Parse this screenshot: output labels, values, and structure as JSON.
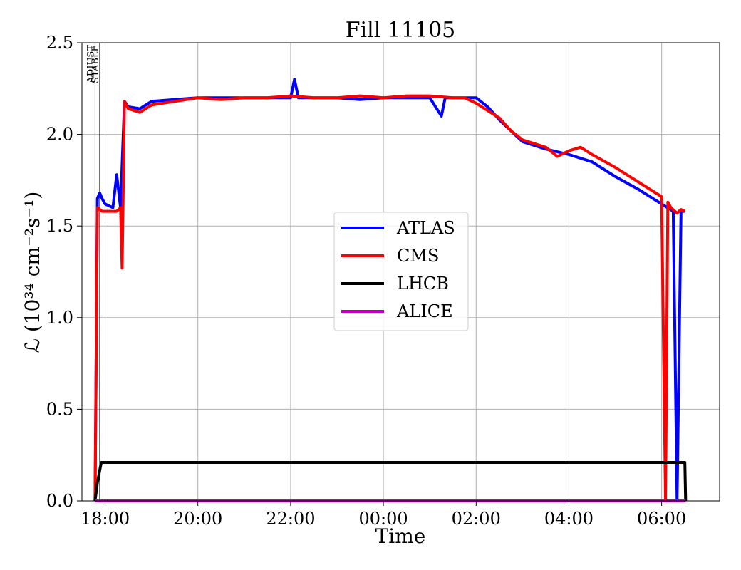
{
  "chart_data": {
    "type": "line",
    "title": "Fill 11105",
    "xlabel": "Time",
    "ylabel": "ℒ (10³⁴ cm⁻²s⁻¹)",
    "x_axis": {
      "ticks": [
        "18:00",
        "20:00",
        "22:00",
        "00:00",
        "02:00",
        "04:00",
        "06:00"
      ],
      "range": [
        "17:30",
        "07:15"
      ]
    },
    "y_axis": {
      "ticks": [
        "0.0",
        "0.5",
        "1.0",
        "1.5",
        "2.0",
        "2.5"
      ],
      "range": [
        0,
        2.5
      ]
    },
    "grid": true,
    "legend_position": "center",
    "markers": [
      {
        "label": "ADJUST",
        "time": "17:47"
      },
      {
        "label": "STABLE",
        "time": "17:53"
      }
    ],
    "series": [
      {
        "name": "ATLAS",
        "color": "#0000ff",
        "x": [
          "17:47",
          "17:50",
          "17:53",
          "17:56",
          "18:00",
          "18:10",
          "18:15",
          "18:20",
          "18:25",
          "18:30",
          "18:45",
          "19:00",
          "19:30",
          "20:00",
          "20:30",
          "21:00",
          "21:30",
          "22:00",
          "22:05",
          "22:10",
          "22:30",
          "23:00",
          "23:30",
          "00:00",
          "00:30",
          "01:00",
          "01:15",
          "01:20",
          "01:30",
          "01:45",
          "02:00",
          "02:15",
          "02:30",
          "02:45",
          "03:00",
          "03:30",
          "04:00",
          "04:30",
          "05:00",
          "05:30",
          "06:00",
          "06:15",
          "06:20",
          "06:25",
          "06:30"
        ],
        "y": [
          0.0,
          1.65,
          1.68,
          1.65,
          1.62,
          1.6,
          1.78,
          1.6,
          2.18,
          2.15,
          2.14,
          2.18,
          2.19,
          2.2,
          2.2,
          2.2,
          2.2,
          2.2,
          2.3,
          2.2,
          2.2,
          2.2,
          2.19,
          2.2,
          2.2,
          2.2,
          2.1,
          2.2,
          2.2,
          2.2,
          2.2,
          2.15,
          2.08,
          2.02,
          1.96,
          1.92,
          1.89,
          1.85,
          1.77,
          1.7,
          1.62,
          1.58,
          0.0,
          1.58,
          1.58
        ]
      },
      {
        "name": "CMS",
        "color": "#ff0000",
        "x": [
          "17:47",
          "17:50",
          "17:53",
          "17:56",
          "18:00",
          "18:10",
          "18:15",
          "18:20",
          "18:22",
          "18:25",
          "18:30",
          "18:45",
          "19:00",
          "19:30",
          "20:00",
          "20:30",
          "21:00",
          "21:30",
          "22:00",
          "22:30",
          "23:00",
          "23:30",
          "00:00",
          "00:30",
          "01:00",
          "01:30",
          "01:45",
          "02:00",
          "02:15",
          "02:30",
          "02:45",
          "03:00",
          "03:30",
          "03:45",
          "04:00",
          "04:15",
          "04:30",
          "05:00",
          "05:30",
          "06:00",
          "06:05",
          "06:08",
          "06:12",
          "06:20",
          "06:25",
          "06:30"
        ],
        "y": [
          0.0,
          1.6,
          1.59,
          1.58,
          1.58,
          1.58,
          1.58,
          1.6,
          1.27,
          2.18,
          2.14,
          2.12,
          2.16,
          2.18,
          2.2,
          2.19,
          2.2,
          2.2,
          2.21,
          2.2,
          2.2,
          2.21,
          2.2,
          2.21,
          2.21,
          2.2,
          2.2,
          2.17,
          2.13,
          2.09,
          2.02,
          1.97,
          1.93,
          1.88,
          1.91,
          1.93,
          1.89,
          1.82,
          1.74,
          1.66,
          0.0,
          1.63,
          1.6,
          1.57,
          1.59,
          1.58
        ]
      },
      {
        "name": "LHCB",
        "color": "#000000",
        "x": [
          "17:47",
          "17:50",
          "17:55",
          "18:00",
          "19:00",
          "20:00",
          "21:00",
          "22:00",
          "23:00",
          "00:00",
          "01:00",
          "02:00",
          "03:00",
          "04:00",
          "05:00",
          "06:00",
          "06:30",
          "06:31"
        ],
        "y": [
          0.0,
          0.1,
          0.21,
          0.21,
          0.21,
          0.21,
          0.21,
          0.21,
          0.21,
          0.21,
          0.21,
          0.21,
          0.21,
          0.21,
          0.21,
          0.21,
          0.21,
          0.0
        ]
      },
      {
        "name": "ALICE",
        "color": "#bf00bf",
        "x": [
          "17:47",
          "06:31"
        ],
        "y": [
          0.0,
          0.0
        ]
      }
    ]
  }
}
